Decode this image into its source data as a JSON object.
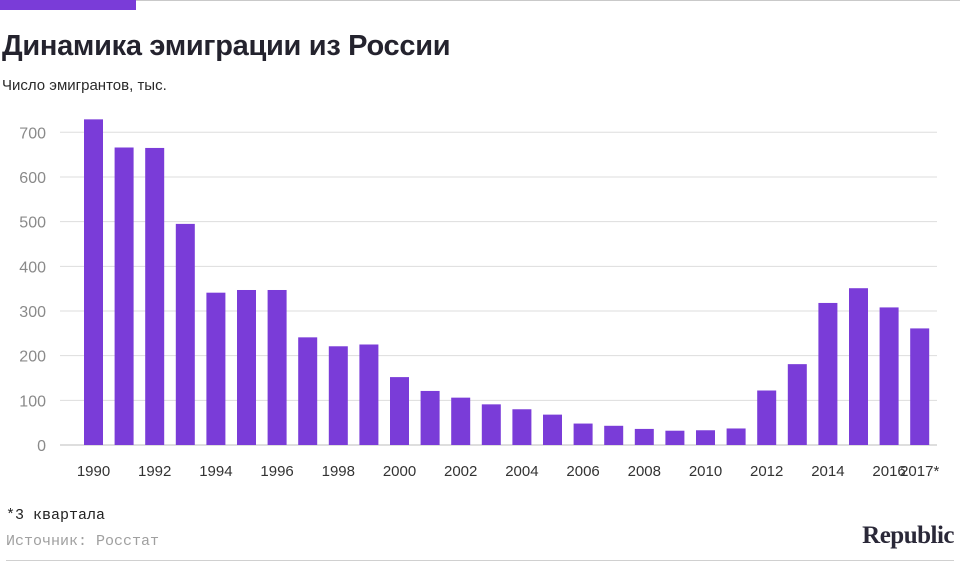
{
  "header": {
    "title": "Динамика эмиграции из России",
    "subtitle": "Число эмигрантов, тыс."
  },
  "footer": {
    "footnote": "*3 квартала",
    "source": "Источник: Росстат",
    "logo": "Republic"
  },
  "colors": {
    "bar": "#7a3cd8",
    "accent": "#7a3cd8",
    "grid": "#dddddd",
    "tick": "#8a8a8a"
  },
  "chart_data": {
    "type": "bar",
    "categories": [
      "1990",
      "1991",
      "1992",
      "1993",
      "1994",
      "1995",
      "1996",
      "1997",
      "1998",
      "1999",
      "2000",
      "2001",
      "2002",
      "2003",
      "2004",
      "2005",
      "2006",
      "2007",
      "2008",
      "2009",
      "2010",
      "2011",
      "2012",
      "2013",
      "2014",
      "2015",
      "2016",
      "2017*"
    ],
    "values": [
      729,
      666,
      665,
      495,
      341,
      347,
      347,
      241,
      221,
      225,
      152,
      121,
      106,
      91,
      80,
      68,
      48,
      43,
      36,
      32,
      33,
      37,
      122,
      181,
      318,
      351,
      308,
      261
    ],
    "tick_labels": [
      "1990",
      "",
      "1992",
      "",
      "1994",
      "",
      "1996",
      "",
      "1998",
      "",
      "2000",
      "",
      "2002",
      "",
      "2004",
      "",
      "2006",
      "",
      "2008",
      "",
      "2010",
      "",
      "2012",
      "",
      "2014",
      "",
      "2016",
      "2017*"
    ],
    "y_ticks": [
      0,
      100,
      200,
      300,
      400,
      500,
      600,
      700
    ],
    "ylim": [
      0,
      750
    ],
    "grid": true
  }
}
